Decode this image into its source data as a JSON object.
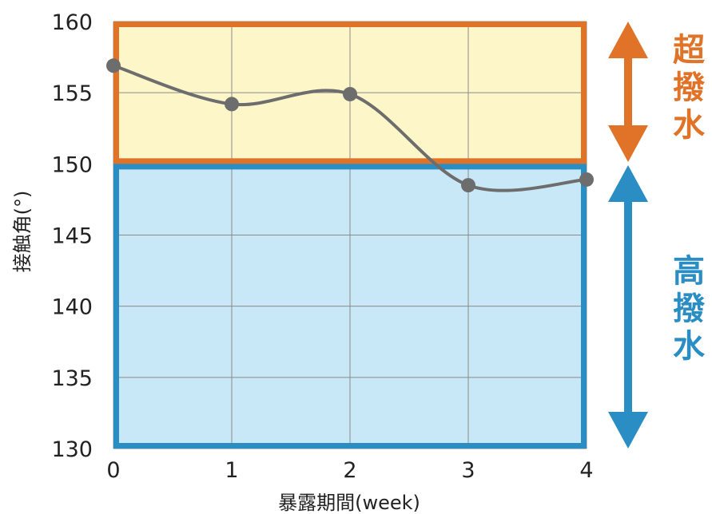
{
  "chart_data": {
    "type": "line",
    "xlabel": "暴露期間(week)",
    "ylabel": "接触角(°)",
    "x": [
      0,
      1,
      2,
      3,
      4
    ],
    "xticks": [
      "0",
      "1",
      "2",
      "3",
      "4"
    ],
    "yticks": [
      "130",
      "135",
      "140",
      "145",
      "150",
      "155",
      "160"
    ],
    "xlim": [
      0,
      4
    ],
    "ylim": [
      130,
      160
    ],
    "grid": true,
    "series": [
      {
        "values": [
          156.9,
          154.2,
          154.9,
          148.5,
          148.9
        ]
      }
    ],
    "bands": [
      {
        "label": "超撥水",
        "from": 150,
        "to": 160,
        "fill": "#fdf6c8",
        "stroke": "#e07328"
      },
      {
        "label": "高撥水",
        "from": 130,
        "to": 150,
        "fill": "#c8e8f7",
        "stroke": "#2a8ec4"
      }
    ],
    "colors": {
      "line": "#6d6d6d",
      "grid": "#8a8a8a",
      "super": "#e07328",
      "high": "#2a8ec4"
    }
  }
}
